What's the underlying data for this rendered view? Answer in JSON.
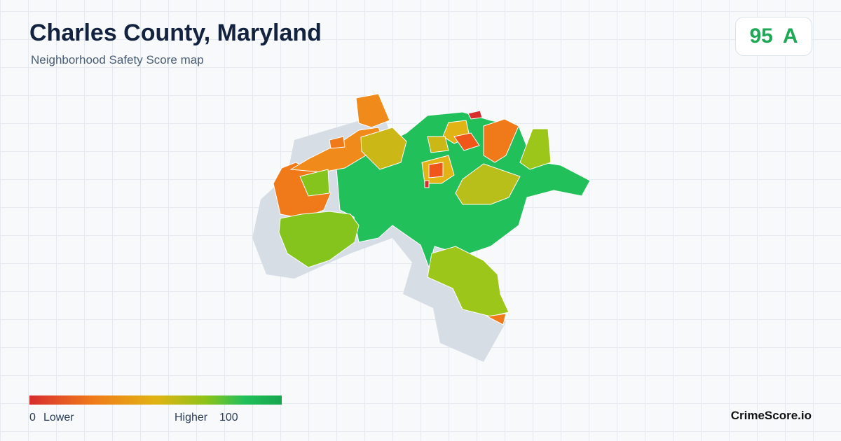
{
  "header": {
    "title": "Charles County, Maryland",
    "subtitle": "Neighborhood Safety Score map"
  },
  "score": {
    "value": 95,
    "grade": "A"
  },
  "legend": {
    "min": 0,
    "min_label": "Lower",
    "max_label": "Higher",
    "max": 100
  },
  "brand": "CrimeScore.io"
}
